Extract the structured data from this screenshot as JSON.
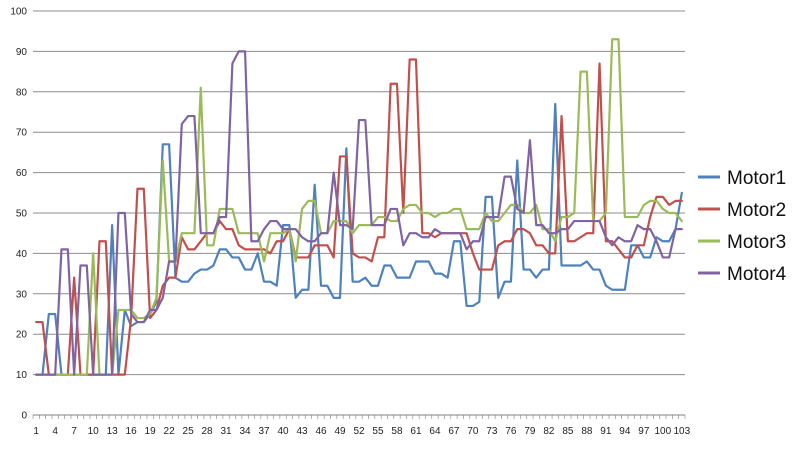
{
  "chart_data": {
    "type": "line",
    "title": "",
    "xlabel": "",
    "ylabel": "",
    "ylim": [
      0,
      100
    ],
    "yticks": [
      0,
      10,
      20,
      30,
      40,
      50,
      60,
      70,
      80,
      90,
      100
    ],
    "x_tick_labels": [
      "1",
      "4",
      "7",
      "10",
      "13",
      "16",
      "19",
      "22",
      "25",
      "28",
      "31",
      "34",
      "37",
      "40",
      "43",
      "46",
      "49",
      "52",
      "55",
      "58",
      "61",
      "64",
      "67",
      "70",
      "73",
      "76",
      "79",
      "82",
      "85",
      "88",
      "91",
      "94",
      "97",
      "100",
      "103"
    ],
    "x_tick_start": 1,
    "x_tick_step": 3,
    "n_points": 103,
    "grid": "horizontal",
    "legend": "right",
    "series": [
      {
        "name": "Motor1",
        "color": "#4f81bd",
        "values": [
          10,
          10,
          25,
          25,
          10,
          10,
          10,
          10,
          10,
          10,
          10,
          10,
          47,
          10,
          26,
          22,
          23,
          23,
          25,
          28,
          67,
          67,
          34,
          33,
          33,
          35,
          36,
          36,
          37,
          41,
          41,
          39,
          39,
          36,
          36,
          40,
          33,
          33,
          32,
          47,
          47,
          29,
          31,
          31,
          57,
          32,
          32,
          29,
          29,
          66,
          33,
          33,
          34,
          32,
          32,
          37,
          37,
          34,
          34,
          34,
          38,
          38,
          38,
          35,
          35,
          34,
          43,
          43,
          27,
          27,
          28,
          54,
          54,
          29,
          33,
          33,
          63,
          36,
          36,
          34,
          36,
          36,
          77,
          37,
          37,
          37,
          37,
          38,
          36,
          36,
          32,
          31,
          31,
          31,
          42,
          42,
          39,
          39,
          44,
          43,
          43,
          46,
          55
        ]
      },
      {
        "name": "Motor2",
        "color": "#c0504d",
        "values": [
          23,
          23,
          10,
          10,
          10,
          10,
          34,
          10,
          10,
          10,
          43,
          43,
          10,
          10,
          10,
          24,
          56,
          56,
          24,
          26,
          32,
          34,
          34,
          44,
          41,
          41,
          43,
          45,
          45,
          48,
          46,
          46,
          42,
          41,
          41,
          41,
          41,
          40,
          43,
          43,
          46,
          39,
          39,
          39,
          42,
          42,
          42,
          39,
          64,
          64,
          40,
          39,
          39,
          38,
          44,
          44,
          82,
          82,
          50,
          88,
          88,
          45,
          45,
          44,
          45,
          45,
          45,
          45,
          45,
          40,
          36,
          36,
          36,
          42,
          43,
          43,
          46,
          46,
          45,
          42,
          42,
          40,
          40,
          74,
          43,
          43,
          44,
          45,
          45,
          87,
          43,
          43,
          41,
          39,
          39,
          42,
          42,
          49,
          54,
          54,
          52,
          53,
          53
        ]
      },
      {
        "name": "Motor3",
        "color": "#9bbb59",
        "values": [
          10,
          10,
          10,
          10,
          10,
          10,
          10,
          10,
          10,
          40,
          10,
          10,
          10,
          26,
          26,
          26,
          24,
          24,
          25,
          29,
          63,
          38,
          38,
          45,
          45,
          45,
          81,
          42,
          42,
          51,
          51,
          51,
          45,
          45,
          45,
          45,
          38,
          45,
          45,
          45,
          46,
          38,
          51,
          53,
          53,
          45,
          45,
          48,
          48,
          48,
          45,
          47,
          47,
          47,
          49,
          49,
          48,
          48,
          51,
          52,
          52,
          50,
          50,
          49,
          50,
          50,
          51,
          51,
          46,
          46,
          46,
          50,
          48,
          48,
          50,
          52,
          52,
          50,
          50,
          52,
          46,
          46,
          43,
          49,
          49,
          50,
          85,
          85,
          48,
          48,
          50,
          93,
          93,
          49,
          49,
          49,
          52,
          53,
          53,
          51,
          50,
          50,
          48
        ]
      },
      {
        "name": "Motor4",
        "color": "#8064a2",
        "values": [
          10,
          10,
          10,
          10,
          41,
          41,
          10,
          37,
          37,
          10,
          10,
          10,
          10,
          50,
          50,
          25,
          23,
          23,
          26,
          26,
          29,
          38,
          38,
          72,
          74,
          74,
          45,
          45,
          45,
          49,
          49,
          87,
          90,
          90,
          43,
          43,
          46,
          48,
          48,
          46,
          46,
          46,
          44,
          43,
          43,
          45,
          45,
          60,
          47,
          47,
          46,
          73,
          73,
          47,
          47,
          47,
          51,
          51,
          42,
          45,
          45,
          44,
          44,
          46,
          45,
          45,
          45,
          45,
          41,
          43,
          43,
          49,
          49,
          49,
          59,
          59,
          51,
          50,
          68,
          47,
          47,
          45,
          45,
          46,
          46,
          48,
          48,
          48,
          48,
          48,
          44,
          42,
          44,
          43,
          43,
          47,
          46,
          46,
          43,
          39,
          39,
          46,
          46
        ]
      }
    ]
  }
}
